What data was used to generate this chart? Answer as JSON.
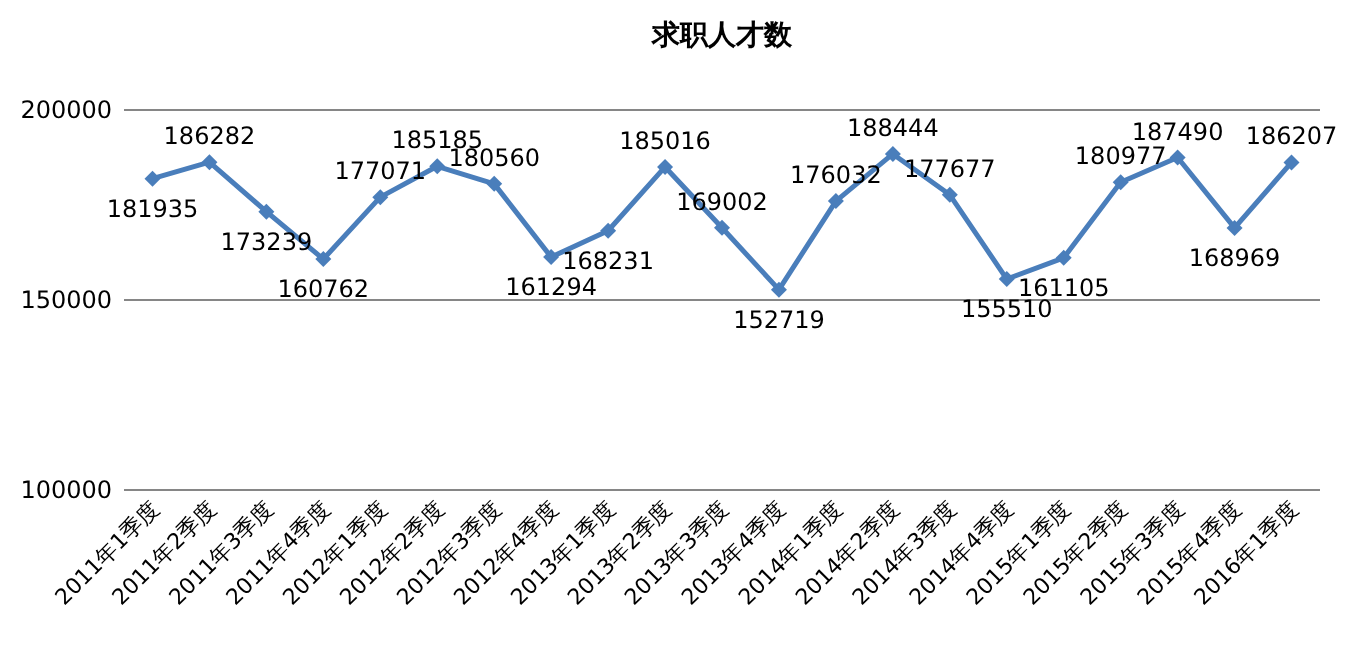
{
  "chart_data": {
    "type": "line",
    "title": "求职人才数",
    "categories": [
      "2011年1季度",
      "2011年2季度",
      "2011年3季度",
      "2011年4季度",
      "2012年1季度",
      "2012年2季度",
      "2012年3季度",
      "2012年4季度",
      "2013年1季度",
      "2013年2季度",
      "2013年3季度",
      "2013年4季度",
      "2014年1季度",
      "2014年2季度",
      "2014年3季度",
      "2014年4季度",
      "2015年1季度",
      "2015年2季度",
      "2015年3季度",
      "2015年4季度",
      "2016年1季度"
    ],
    "values": [
      181935,
      186282,
      173239,
      160762,
      177071,
      185185,
      180560,
      161294,
      168231,
      185016,
      169002,
      152719,
      176032,
      188444,
      177677,
      155510,
      161105,
      180977,
      187490,
      168969,
      186207
    ],
    "color": "#4a7ebb",
    "ylim": [
      100000,
      200000
    ],
    "yticks": [
      100000,
      150000,
      200000
    ],
    "grid": "y",
    "marker": "diamond",
    "data_labels": true
  }
}
